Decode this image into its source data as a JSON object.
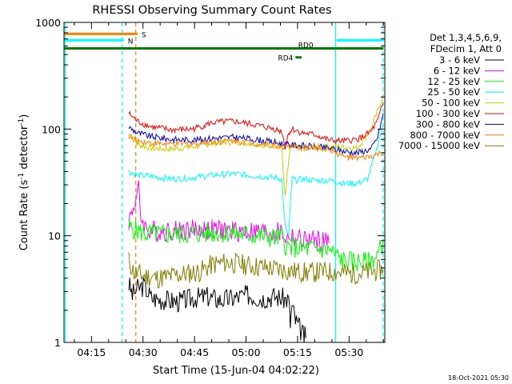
{
  "chart_data": {
    "type": "line",
    "title": "RHESSI Observing Summary Count Rates",
    "xlabel": "Start Time (15-Jun-04 04:02:22)",
    "ylabel_prefix": "Count Rate (s",
    "ylabel_sup": "-1",
    "ylabel_mid": " detector",
    "ylabel_suffix": ")",
    "yscale": "log",
    "ylim": [
      1,
      1000
    ],
    "xlim_min": [
      4.6,
      98.0
    ],
    "grid": false,
    "x_ticks": [
      {
        "min": 12.6,
        "label": "04:15"
      },
      {
        "min": 27.6,
        "label": "04:30"
      },
      {
        "min": 42.6,
        "label": "04:45"
      },
      {
        "min": 57.6,
        "label": "05:00"
      },
      {
        "min": 72.6,
        "label": "05:15"
      },
      {
        "min": 87.6,
        "label": "05:30"
      }
    ],
    "y_ticks": [
      {
        "value": 1,
        "label": "1"
      },
      {
        "value": 10,
        "label": "10"
      },
      {
        "value": 100,
        "label": "100"
      },
      {
        "value": 1000,
        "label": "1000"
      }
    ],
    "legend_header": [
      "Det 1,3,4,5,6,9,",
      "FDecim 1, Att 0"
    ],
    "legend_position": "right",
    "series": [
      {
        "name": "3 - 6 keV",
        "color": "#000000",
        "x": [
          23.5,
          24.5,
          26,
          28,
          30,
          34,
          38,
          42,
          46,
          50,
          54,
          58,
          62,
          66,
          70,
          70.5,
          71,
          72,
          73,
          74,
          75
        ],
        "y": [
          3.5,
          2.8,
          3.2,
          3.4,
          2.6,
          2.5,
          2.4,
          2.6,
          2.7,
          2.5,
          2.6,
          2.8,
          2.6,
          2.7,
          2.5,
          1.5,
          2.2,
          1.6,
          1.4,
          1.2,
          1.1
        ]
      },
      {
        "name": "6 - 12 keV",
        "color": "#ff00ff",
        "x": [
          23.5,
          24.5,
          25.5,
          26.3,
          27,
          28.5,
          32,
          38,
          44,
          50,
          56,
          62,
          68,
          69.5,
          70.5,
          72,
          76,
          80,
          82
        ],
        "y": [
          14,
          17,
          22,
          27,
          15,
          11.5,
          11,
          11.3,
          11.5,
          11.2,
          11.0,
          10.8,
          10.6,
          9.2,
          10.2,
          9.3,
          9.0,
          8.8,
          8.6
        ]
      },
      {
        "name": "12 - 25 keV",
        "color": "#00ff00",
        "x": [
          23.5,
          28,
          34,
          40,
          46,
          50,
          54,
          58,
          62,
          66,
          68,
          69.5,
          70.5,
          73,
          76,
          80,
          82,
          86,
          90,
          93,
          96,
          97.5
        ],
        "y": [
          12,
          10.5,
          10.3,
          10.4,
          10.6,
          10.8,
          10.5,
          10.2,
          10.0,
          9.5,
          9.8,
          7.8,
          7.8,
          7.6,
          7.6,
          7.4,
          7.3,
          5.8,
          5.7,
          5.6,
          6.5,
          9.0
        ]
      },
      {
        "name": "25 - 50 keV",
        "color": "#00ffff",
        "x": [
          23.5,
          26,
          30,
          36,
          42,
          48,
          54,
          58,
          62,
          66,
          68,
          69,
          70,
          71,
          72,
          74,
          78,
          82,
          86,
          90,
          93,
          95,
          97.5
        ],
        "y": [
          40,
          37,
          36,
          34,
          35,
          37,
          38,
          37,
          36,
          35,
          34,
          12,
          10,
          35,
          33,
          34,
          33,
          33,
          31,
          31,
          34,
          55,
          110
        ]
      },
      {
        "name": "50 - 100 keV",
        "color": "#cccc00",
        "x": [
          23.5,
          26,
          30,
          36,
          42,
          48,
          54,
          60,
          66,
          68,
          68.5,
          69,
          70.5,
          74,
          78,
          82,
          86,
          90,
          94,
          96,
          97.5
        ],
        "y": [
          90,
          72,
          66,
          65,
          68,
          74,
          76,
          73,
          70,
          69,
          35,
          24,
          68,
          66,
          68,
          68,
          68,
          66,
          100,
          150,
          210
        ]
      },
      {
        "name": "100 - 300 keV",
        "color": "#ff0000",
        "x": [
          23.5,
          26,
          30,
          36,
          42,
          48,
          54,
          60,
          66,
          68,
          69,
          70,
          71,
          74,
          78,
          82,
          86,
          90,
          92,
          94,
          96,
          97.5
        ],
        "y": [
          140,
          118,
          105,
          98,
          100,
          115,
          118,
          110,
          100,
          95,
          68,
          92,
          100,
          92,
          88,
          78,
          77,
          80,
          86,
          95,
          120,
          175
        ]
      },
      {
        "name": "300 - 800 keV",
        "color": "#0000cc",
        "x": [
          23.5,
          26,
          30,
          36,
          42,
          48,
          54,
          60,
          66,
          70,
          74,
          78,
          82,
          86,
          90,
          94,
          96,
          97.5
        ],
        "y": [
          104,
          92,
          85,
          80,
          79,
          82,
          84,
          80,
          75,
          71,
          70,
          68,
          66,
          62,
          60,
          65,
          85,
          140
        ]
      },
      {
        "name": "800 - 7000 keV",
        "color": "#ff8000",
        "x": [
          23.5,
          26,
          30,
          36,
          42,
          48,
          54,
          60,
          66,
          70,
          74,
          78,
          82,
          86,
          90,
          94,
          96,
          97.5
        ],
        "y": [
          86,
          78,
          74,
          72,
          73,
          76,
          78,
          74,
          70,
          68,
          67,
          66,
          65,
          55,
          53,
          55,
          58,
          60
        ]
      },
      {
        "name": "7000 - 15000 keV",
        "color": "#808000",
        "x": [
          23.5,
          25,
          28,
          32,
          36,
          40,
          44,
          48,
          52,
          56,
          60,
          64,
          68,
          72,
          76,
          80,
          84,
          88,
          92,
          94,
          97.5
        ],
        "y": [
          5.8,
          4.5,
          4.2,
          4.0,
          4.2,
          4.4,
          4.6,
          5.4,
          5.6,
          5.4,
          5.2,
          5.0,
          4.8,
          4.6,
          4.5,
          4.6,
          4.6,
          4.4,
          4.5,
          4.6,
          4.8
        ]
      }
    ],
    "vertical_markers": [
      {
        "min": 5.0,
        "color": "#00ffff",
        "style": "solid"
      },
      {
        "min": 21.5,
        "color": "#00ffff",
        "style": "dashed"
      },
      {
        "min": 25.5,
        "color": "#ff8000",
        "style": "dashed"
      },
      {
        "min": 83.7,
        "color": "#00ffff",
        "style": "solid"
      },
      {
        "min": 97.5,
        "color": "#00ffff",
        "style": "dashed"
      }
    ],
    "flag_bars": [
      {
        "label": "S",
        "color": "#ff8000",
        "x1": 4.6,
        "x2": 26.0,
        "value": 780,
        "label_side": "right"
      },
      {
        "label": "N",
        "color": "#00ffff",
        "x1": 4.6,
        "x2": 22.0,
        "value": 680,
        "label_side": "right"
      },
      {
        "label": "N",
        "color": "#00ffff",
        "x1": 84.0,
        "x2": 97.6,
        "value": 680,
        "label_side": "none"
      },
      {
        "label": "RD0",
        "color": "#008000",
        "x1": 4.6,
        "x2": 97.6,
        "value": 570,
        "label_side": "above-right"
      },
      {
        "label": "RD4",
        "color": "#008000",
        "x1": 72.0,
        "x2": 73.8,
        "value": 470,
        "label_side": "left"
      }
    ],
    "timestamp": "18-Oct-2021 05:30"
  }
}
